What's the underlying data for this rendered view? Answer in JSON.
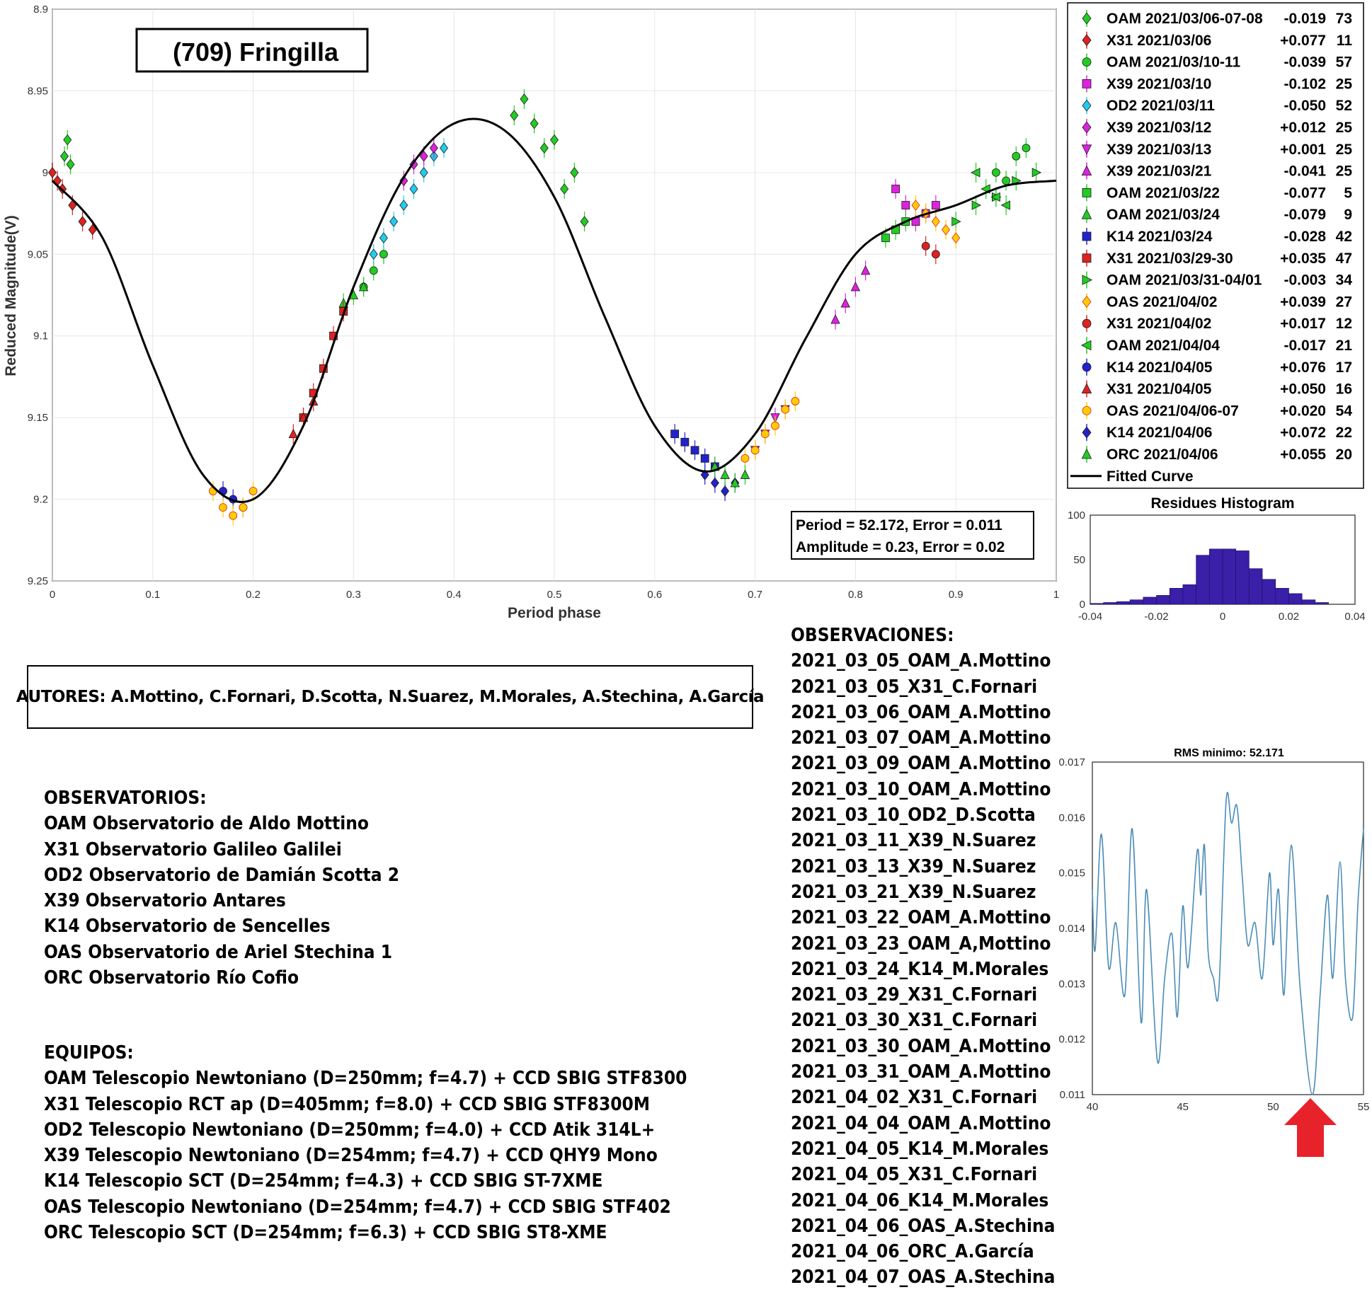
{
  "chart_data": [
    {
      "type": "scatter",
      "title": "(709) Fringilla",
      "xlabel": "Period phase",
      "ylabel": "Reduced Magnitude(V)",
      "xlim": [
        0,
        1
      ],
      "ylim": [
        8.9,
        9.25
      ],
      "y_reversed": true,
      "grid": true,
      "legend_position": "top-right outside",
      "x_ticks": [
        "0",
        "0.1",
        "0.2",
        "0.3",
        "0.4",
        "0.5",
        "0.6",
        "0.7",
        "0.8",
        "0.9",
        "1"
      ],
      "y_ticks": [
        "8.9",
        "8.95",
        "9",
        "9.05",
        "9.1",
        "9.15",
        "9.2",
        "9.25"
      ],
      "fit": {
        "label": "Fitted Curve",
        "period": "52.172",
        "period_error": "0.011",
        "amplitude": "0.23",
        "amplitude_error": "0.02"
      },
      "stats_lines": [
        "Period =  52.172, Error = 0.011",
        "Amplitude = 0.23, Error = 0.02"
      ],
      "fitted_curve": {
        "x": [
          0,
          0.05,
          0.1,
          0.15,
          0.2,
          0.25,
          0.3,
          0.35,
          0.4,
          0.45,
          0.5,
          0.55,
          0.6,
          0.65,
          0.7,
          0.75,
          0.8,
          0.85,
          0.9,
          0.95,
          1
        ],
        "y": [
          9.005,
          9.04,
          9.118,
          9.185,
          9.2,
          9.155,
          9.07,
          9.003,
          8.97,
          8.974,
          9.015,
          9.088,
          9.155,
          9.183,
          9.16,
          9.102,
          9.05,
          9.03,
          9.02,
          9.008,
          9.005
        ]
      },
      "series": [
        {
          "name": "OAM 2021/03/06-07-08",
          "offset": "-0.019",
          "points_count": "73",
          "marker": "diamond",
          "color": "#22cc22",
          "x": [
            0.012,
            0.015,
            0.018,
            0.46,
            0.47,
            0.48,
            0.49,
            0.5,
            0.51,
            0.52,
            0.53
          ],
          "y": [
            8.99,
            8.98,
            8.995,
            8.965,
            8.955,
            8.97,
            8.985,
            8.98,
            9.01,
            9.0,
            9.03
          ]
        },
        {
          "name": "X31 2021/03/06",
          "offset": "+0.077",
          "points_count": "11",
          "marker": "diamond",
          "color": "#dd2222",
          "x": [
            0.0,
            0.005,
            0.01,
            0.02,
            0.03,
            0.04
          ],
          "y": [
            9.0,
            9.005,
            9.01,
            9.02,
            9.03,
            9.035
          ]
        },
        {
          "name": "OAM 2021/03/10-11",
          "offset": "-0.039",
          "points_count": "57",
          "marker": "circle",
          "color": "#22cc22",
          "x": [
            0.31,
            0.32,
            0.33,
            0.94,
            0.95,
            0.96,
            0.97
          ],
          "y": [
            9.07,
            9.06,
            9.05,
            9.0,
            9.005,
            8.99,
            8.985
          ]
        },
        {
          "name": "X39 2021/03/10",
          "offset": "-0.102",
          "points_count": "25",
          "marker": "square",
          "color": "#dd22dd",
          "x": [
            0.84,
            0.85,
            0.86,
            0.87,
            0.88
          ],
          "y": [
            9.01,
            9.02,
            9.03,
            9.025,
            9.02
          ]
        },
        {
          "name": "OD2 2021/03/11",
          "offset": "-0.050",
          "points_count": "52",
          "marker": "diamond",
          "color": "#22ccee",
          "x": [
            0.32,
            0.33,
            0.34,
            0.35,
            0.36,
            0.37,
            0.38,
            0.39
          ],
          "y": [
            9.05,
            9.04,
            9.03,
            9.02,
            9.01,
            9.0,
            8.99,
            8.985
          ]
        },
        {
          "name": "X39 2021/03/12",
          "offset": "+0.012",
          "points_count": "25",
          "marker": "diamond",
          "color": "#dd22dd",
          "x": [
            0.35,
            0.36,
            0.37,
            0.38
          ],
          "y": [
            9.005,
            8.995,
            8.99,
            8.985
          ]
        },
        {
          "name": "X39 2021/03/13",
          "offset": "+0.001",
          "points_count": "25",
          "marker": "triangle-down",
          "color": "#dd22dd",
          "x": [
            0.7,
            0.71,
            0.72,
            0.73
          ],
          "y": [
            9.17,
            9.16,
            9.15,
            9.145
          ]
        },
        {
          "name": "X39 2021/03/21",
          "offset": "-0.041",
          "points_count": "25",
          "marker": "triangle-up",
          "color": "#dd22dd",
          "x": [
            0.78,
            0.79,
            0.8,
            0.81
          ],
          "y": [
            9.09,
            9.08,
            9.07,
            9.06
          ]
        },
        {
          "name": "OAM 2021/03/22",
          "offset": "-0.077",
          "points_count": "5",
          "marker": "square",
          "color": "#22cc22",
          "x": [
            0.83,
            0.84,
            0.85
          ],
          "y": [
            9.04,
            9.035,
            9.03
          ]
        },
        {
          "name": "OAM 2021/03/24",
          "offset": "-0.079",
          "points_count": "9",
          "marker": "triangle-up",
          "color": "#22cc22",
          "x": [
            0.29,
            0.3,
            0.31
          ],
          "y": [
            9.08,
            9.075,
            9.07
          ]
        },
        {
          "name": "K14 2021/03/24",
          "offset": "-0.028",
          "points_count": "42",
          "marker": "square",
          "color": "#2222cc",
          "x": [
            0.62,
            0.63,
            0.64,
            0.65,
            0.66
          ],
          "y": [
            9.16,
            9.165,
            9.17,
            9.175,
            9.18
          ]
        },
        {
          "name": "X31 2021/03/29-30",
          "offset": "+0.035",
          "points_count": "47",
          "marker": "square",
          "color": "#dd2222",
          "x": [
            0.25,
            0.26,
            0.27,
            0.28,
            0.29
          ],
          "y": [
            9.15,
            9.135,
            9.12,
            9.1,
            9.085
          ]
        },
        {
          "name": "OAM 2021/03/31-04/01",
          "offset": "-0.003",
          "points_count": "34",
          "marker": "triangle-right",
          "color": "#22cc22",
          "x": [
            0.9,
            0.92,
            0.94,
            0.96,
            0.98
          ],
          "y": [
            9.03,
            9.02,
            9.015,
            9.005,
            9.0
          ]
        },
        {
          "name": "OAS 2021/04/02",
          "offset": "+0.039",
          "points_count": "27",
          "marker": "diamond",
          "color": "#ffcc00",
          "x": [
            0.86,
            0.87,
            0.88,
            0.89,
            0.9
          ],
          "y": [
            9.02,
            9.025,
            9.03,
            9.035,
            9.04
          ]
        },
        {
          "name": "X31 2021/04/02",
          "offset": "+0.017",
          "points_count": "12",
          "marker": "circle",
          "color": "#dd2222",
          "x": [
            0.87,
            0.88
          ],
          "y": [
            9.045,
            9.05
          ]
        },
        {
          "name": "OAM 2021/04/04",
          "offset": "-0.017",
          "points_count": "21",
          "marker": "triangle-left",
          "color": "#22cc22",
          "x": [
            0.92,
            0.93,
            0.94,
            0.95
          ],
          "y": [
            9.0,
            9.01,
            9.015,
            9.02
          ]
        },
        {
          "name": "K14 2021/04/05",
          "offset": "+0.076",
          "points_count": "17",
          "marker": "circle",
          "color": "#2222cc",
          "x": [
            0.17,
            0.18,
            0.19
          ],
          "y": [
            9.195,
            9.2,
            9.205
          ]
        },
        {
          "name": "X31 2021/04/05",
          "offset": "+0.050",
          "points_count": "16",
          "marker": "triangle-up",
          "color": "#dd2222",
          "x": [
            0.24,
            0.25,
            0.26
          ],
          "y": [
            9.16,
            9.15,
            9.14
          ]
        },
        {
          "name": "OAS 2021/04/06-07",
          "offset": "+0.020",
          "points_count": "54",
          "marker": "circle",
          "color": "#ffcc00",
          "x": [
            0.16,
            0.17,
            0.18,
            0.19,
            0.2,
            0.69,
            0.7,
            0.71,
            0.72,
            0.73,
            0.74
          ],
          "y": [
            9.195,
            9.205,
            9.21,
            9.205,
            9.195,
            9.175,
            9.17,
            9.16,
            9.155,
            9.145,
            9.14
          ]
        },
        {
          "name": "K14 2021/04/06",
          "offset": "+0.072",
          "points_count": "22",
          "marker": "diamond",
          "color": "#2222cc",
          "x": [
            0.65,
            0.66,
            0.67,
            0.68
          ],
          "y": [
            9.185,
            9.19,
            9.195,
            9.19
          ]
        },
        {
          "name": "ORC 2021/04/06",
          "offset": "+0.055",
          "points_count": "20",
          "marker": "triangle-up",
          "color": "#22cc22",
          "x": [
            0.66,
            0.67,
            0.68,
            0.69
          ],
          "y": [
            9.18,
            9.185,
            9.19,
            9.185
          ]
        }
      ]
    },
    {
      "type": "bar",
      "title": "Residues Histogram",
      "color": "#3a1fa8",
      "xlim": [
        -0.04,
        0.04
      ],
      "ylim": [
        0,
        100
      ],
      "x_ticks": [
        "-0.04",
        "-0.02",
        "0",
        "0.02",
        "0.04"
      ],
      "y_ticks": [
        "0",
        "50",
        "100"
      ],
      "bin_width": 0.004,
      "bin_centers": [
        -0.038,
        -0.034,
        -0.03,
        -0.026,
        -0.022,
        -0.018,
        -0.014,
        -0.01,
        -0.006,
        -0.002,
        0.002,
        0.006,
        0.01,
        0.014,
        0.018,
        0.022,
        0.026,
        0.03
      ],
      "values": [
        1,
        2,
        3,
        5,
        8,
        10,
        18,
        22,
        55,
        62,
        62,
        60,
        40,
        28,
        18,
        12,
        5,
        2
      ]
    },
    {
      "type": "line",
      "title": "RMS minimo: 52.171",
      "color": "#4a8cb8",
      "xlim": [
        40,
        55
      ],
      "ylim": [
        0.011,
        0.017
      ],
      "x_ticks": [
        "40",
        "45",
        "50",
        "55"
      ],
      "y_ticks": [
        "0.011",
        "0.012",
        "0.013",
        "0.014",
        "0.015",
        "0.016",
        "0.017"
      ],
      "x": [
        40,
        40.15,
        40.5,
        40.9,
        41.3,
        41.8,
        42.2,
        42.7,
        43.0,
        43.6,
        44.0,
        44.4,
        44.7,
        45.0,
        45.3,
        45.8,
        46.0,
        46.2,
        46.4,
        46.7,
        47.0,
        47.4,
        47.7,
        48.0,
        48.3,
        48.6,
        49.0,
        49.4,
        49.8,
        50.0,
        50.3,
        50.6,
        51.0,
        51.5,
        52.17,
        52.6,
        53.0,
        53.3,
        53.7,
        54.0,
        54.4,
        54.7,
        55.0
      ],
      "y": [
        0.0147,
        0.0136,
        0.0157,
        0.0133,
        0.0141,
        0.0128,
        0.0158,
        0.0123,
        0.0147,
        0.0116,
        0.0131,
        0.0139,
        0.0124,
        0.0144,
        0.0133,
        0.0154,
        0.0146,
        0.0155,
        0.0136,
        0.0131,
        0.0129,
        0.0163,
        0.0159,
        0.0162,
        0.0149,
        0.0137,
        0.0141,
        0.0131,
        0.015,
        0.0137,
        0.0147,
        0.0128,
        0.0155,
        0.0129,
        0.011,
        0.0128,
        0.0146,
        0.0131,
        0.0152,
        0.0131,
        0.0124,
        0.0145,
        0.0158
      ],
      "annotation": "minimum marked by red arrow at 52.17"
    }
  ],
  "authors_text": "AUTORES: A.Mottino, C.Fornari, D.Scotta, N.Suarez, M.Morales, A.Stechina, A.García",
  "observatorios": {
    "heading": "OBSERVATORIOS:",
    "items": [
      "OAM Observatorio de Aldo Mottino",
      "X31 Observatorio Galileo Galilei",
      "OD2 Observatorio de Damián Scotta 2",
      "X39 Observatorio Antares",
      "K14 Observatorio de Sencelles",
      "OAS Observatorio de Ariel Stechina 1",
      "ORC Observatorio Río Cofio"
    ]
  },
  "equipos": {
    "heading": "EQUIPOS:",
    "items": [
      "OAM Telescopio Newtoniano (D=250mm; f=4.7) + CCD SBIG STF8300",
      "X31 Telescopio RCT ap (D=405mm; f=8.0) + CCD SBIG STF8300M",
      "OD2 Telescopio Newtoniano (D=250mm; f=4.0) + CCD Atik 314L+",
      "X39 Telescopio Newtoniano (D=254mm; f=4.7) + CCD QHY9 Mono",
      "K14 Telescopio SCT (D=254mm; f=4.3) + CCD SBIG ST-7XME",
      "OAS Telescopio Newtoniano (D=254mm; f=4.7) + CCD SBIG STF402",
      "ORC Telescopio SCT (D=254mm; f=6.3) + CCD SBIG ST8-XME"
    ]
  },
  "observaciones": {
    "heading": "OBSERVACIONES:",
    "items": [
      "2021_03_05_OAM_A.Mottino",
      "2021_03_05_X31_C.Fornari",
      "2021_03_06_OAM_A.Mottino",
      "2021_03_07_OAM_A.Mottino",
      "2021_03_09_OAM_A.Mottino",
      "2021_03_10_OAM_A.Mottino",
      "2021_03_10_OD2_D.Scotta",
      "2021_03_11_X39_N.Suarez",
      "2021_03_13_X39_N.Suarez",
      "2021_03_21_X39_N.Suarez",
      "2021_03_22_OAM_A.Mottino",
      "2021_03_23_OAM_A,Mottino",
      "2021_03_24_K14_M.Morales",
      "2021_03_29_X31_C.Fornari",
      "2021_03_30_X31_C.Fornari",
      "2021_03_30_OAM_A.Mottino",
      "2021_03_31_OAM_A.Mottino",
      "2021_04_02_X31_C.Fornari",
      "2021_04_04_OAM_A.Mottino",
      "2021_04_05_K14_M.Morales",
      "2021_04_05_X31_C.Fornari",
      "2021_04_06_K14_M.Morales",
      "2021_04_06_OAS_A.Stechina",
      "2021_04_06_ORC_A.García",
      "2021_04_07_OAS_A.Stechina"
    ]
  }
}
